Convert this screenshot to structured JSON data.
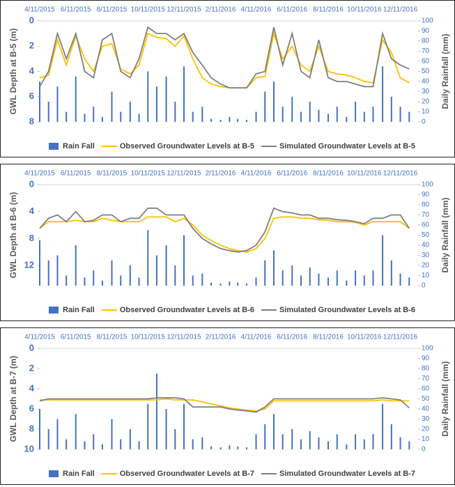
{
  "chart_data": [
    {
      "type": "line",
      "y_axis_label": "GWL Depth at B-5 (m)",
      "y2_axis_label": "Daily Rainfall (mm)",
      "y_inverted": true,
      "x": [
        "4/11/2015",
        "4/26/2015",
        "5/11/2015",
        "5/26/2015",
        "6/11/2015",
        "6/26/2015",
        "7/11/2015",
        "7/26/2015",
        "8/11/2015",
        "8/26/2015",
        "9/11/2015",
        "9/26/2015",
        "10/11/2015",
        "10/26/2015",
        "11/11/2015",
        "11/26/2015",
        "12/11/2015",
        "12/26/2015",
        "1/11/2016",
        "1/26/2016",
        "2/11/2016",
        "2/26/2016",
        "3/11/2016",
        "3/26/2016",
        "4/11/2016",
        "4/26/2016",
        "5/11/2016",
        "5/26/2016",
        "6/11/2016",
        "6/26/2016",
        "7/11/2016",
        "7/26/2016",
        "8/11/2016",
        "8/26/2016",
        "9/11/2016",
        "9/26/2016",
        "10/11/2016",
        "10/26/2016",
        "11/11/2016",
        "11/26/2016",
        "12/11/2016",
        "12/26/2016"
      ],
      "xlim": [
        "4/11/2015",
        "1/10/2017"
      ],
      "xticks": [
        "4/11/2015",
        "6/11/2015",
        "8/11/2015",
        "10/11/2015",
        "12/11/2015",
        "2/11/2016",
        "4/11/2016",
        "6/11/2016",
        "8/11/2016",
        "10/11/2016",
        "12/11/2016"
      ],
      "ylim": [
        0,
        8
      ],
      "yticks": [
        0,
        2,
        4,
        6,
        8
      ],
      "y2lim": [
        0,
        100
      ],
      "y2ticks": [
        0,
        10,
        20,
        30,
        40,
        50,
        60,
        70,
        80,
        90,
        100
      ],
      "series": [
        {
          "name": "Rain Fall",
          "color": "#4472c4",
          "axis": "y2",
          "kind": "bar",
          "values": [
            40,
            20,
            35,
            10,
            45,
            8,
            15,
            5,
            30,
            10,
            20,
            8,
            50,
            35,
            45,
            20,
            55,
            10,
            15,
            3,
            2,
            5,
            3,
            2,
            10,
            30,
            40,
            15,
            25,
            10,
            20,
            12,
            8,
            15,
            5,
            20,
            10,
            15,
            55,
            25,
            15,
            10
          ]
        },
        {
          "name": "Observed Groundwater Levels at B-5",
          "color": "#ffc000",
          "values": [
            4.5,
            4.3,
            1.5,
            3.5,
            1.2,
            3.0,
            4.0,
            2.0,
            1.8,
            3.8,
            4.2,
            3.5,
            1.0,
            1.3,
            1.4,
            2.0,
            1.2,
            3.0,
            4.5,
            5.0,
            5.2,
            5.3,
            5.3,
            5.3,
            4.5,
            4.4,
            1.0,
            3.0,
            2.0,
            3.5,
            4.0,
            2.0,
            4.0,
            4.2,
            4.3,
            4.5,
            4.8,
            4.9,
            1.5,
            2.5,
            4.5,
            4.9
          ]
        },
        {
          "name": "Simulated Groundwater Levels at B-5",
          "color": "#7f7f7f",
          "values": [
            5.2,
            4.0,
            1.0,
            3.0,
            1.0,
            4.0,
            4.5,
            1.5,
            1.0,
            4.0,
            4.5,
            3.0,
            0.5,
            1.0,
            1.0,
            1.5,
            1.0,
            2.5,
            3.5,
            4.5,
            5.0,
            5.3,
            5.3,
            5.3,
            4.2,
            4.0,
            0.5,
            3.5,
            1.0,
            4.0,
            4.5,
            1.5,
            4.5,
            4.8,
            4.8,
            5.0,
            5.2,
            5.2,
            1.0,
            3.0,
            3.5,
            3.8
          ]
        }
      ]
    },
    {
      "type": "line",
      "y_axis_label": "GWL Depth at B-6 (m)",
      "y2_axis_label": "Daily Rainfall (mm)",
      "y_inverted": true,
      "x": [
        "4/11/2015",
        "4/26/2015",
        "5/11/2015",
        "5/26/2015",
        "6/11/2015",
        "6/26/2015",
        "7/11/2015",
        "7/26/2015",
        "8/11/2015",
        "8/26/2015",
        "9/11/2015",
        "9/26/2015",
        "10/11/2015",
        "10/26/2015",
        "11/11/2015",
        "11/26/2015",
        "12/11/2015",
        "12/26/2015",
        "1/11/2016",
        "1/26/2016",
        "2/11/2016",
        "2/26/2016",
        "3/11/2016",
        "3/26/2016",
        "4/11/2016",
        "4/26/2016",
        "5/11/2016",
        "5/26/2016",
        "6/11/2016",
        "6/26/2016",
        "7/11/2016",
        "7/26/2016",
        "8/11/2016",
        "8/26/2016",
        "9/11/2016",
        "9/26/2016",
        "10/11/2016",
        "10/26/2016",
        "11/11/2016",
        "11/26/2016",
        "12/11/2016",
        "12/26/2016"
      ],
      "xlim": [
        "4/11/2015",
        "1/10/2017"
      ],
      "xticks": [
        "4/11/2015",
        "6/11/2015",
        "8/11/2015",
        "10/11/2015",
        "12/11/2015",
        "2/11/2016",
        "4/11/2016",
        "6/11/2016",
        "8/11/2016",
        "10/11/2016",
        "12/11/2016"
      ],
      "ylim": [
        0,
        15
      ],
      "yticks": [
        0,
        4,
        8,
        12
      ],
      "y2lim": [
        0,
        100
      ],
      "y2ticks": [
        0,
        10,
        20,
        30,
        40,
        50,
        60,
        70,
        80,
        90,
        100
      ],
      "series": [
        {
          "name": "Rain Fall",
          "color": "#4472c4",
          "axis": "y2",
          "kind": "bar",
          "values": [
            45,
            25,
            30,
            10,
            40,
            8,
            15,
            5,
            25,
            10,
            20,
            8,
            55,
            30,
            40,
            20,
            50,
            10,
            12,
            3,
            2,
            4,
            3,
            2,
            8,
            25,
            35,
            15,
            20,
            10,
            18,
            12,
            8,
            15,
            5,
            15,
            10,
            15,
            50,
            25,
            12,
            8
          ]
        },
        {
          "name": "Observed Groundwater Levels at B-6",
          "color": "#ffc000",
          "values": [
            6.5,
            5.5,
            5.5,
            5.5,
            5.3,
            5.5,
            5.5,
            5.0,
            5.3,
            5.5,
            5.5,
            5.5,
            4.8,
            4.8,
            4.8,
            5.5,
            5.0,
            6.0,
            7.5,
            8.3,
            9.0,
            9.5,
            9.8,
            10.0,
            9.5,
            8.0,
            5.0,
            4.8,
            4.8,
            5.0,
            5.0,
            5.2,
            5.3,
            5.5,
            5.5,
            5.6,
            6.0,
            5.5,
            5.5,
            5.5,
            5.5,
            6.5
          ]
        },
        {
          "name": "Simulated Groundwater Levels at B-6",
          "color": "#7f7f7f",
          "values": [
            6.5,
            5.0,
            4.5,
            5.5,
            4.0,
            5.5,
            5.3,
            4.5,
            4.5,
            5.5,
            5.0,
            5.0,
            3.5,
            3.5,
            4.5,
            4.5,
            4.5,
            6.5,
            8.0,
            8.8,
            9.5,
            9.8,
            10.0,
            9.8,
            9.0,
            7.0,
            3.5,
            4.0,
            4.2,
            4.5,
            4.5,
            5.0,
            5.0,
            5.2,
            5.3,
            5.5,
            5.8,
            5.0,
            5.0,
            4.5,
            4.5,
            6.5
          ]
        }
      ]
    },
    {
      "type": "line",
      "y_axis_label": "GWL Depth at B-7 (m)",
      "y2_axis_label": "Daily Rainfall (mm)",
      "y_inverted": true,
      "x": [
        "4/11/2015",
        "4/26/2015",
        "5/11/2015",
        "5/26/2015",
        "6/11/2015",
        "6/26/2015",
        "7/11/2015",
        "7/26/2015",
        "8/11/2015",
        "8/26/2015",
        "9/11/2015",
        "9/26/2015",
        "10/11/2015",
        "10/26/2015",
        "11/11/2015",
        "11/26/2015",
        "12/11/2015",
        "12/26/2015",
        "1/11/2016",
        "1/26/2016",
        "2/11/2016",
        "2/26/2016",
        "3/11/2016",
        "3/26/2016",
        "4/11/2016",
        "4/26/2016",
        "5/11/2016",
        "5/26/2016",
        "6/11/2016",
        "6/26/2016",
        "7/11/2016",
        "7/26/2016",
        "8/11/2016",
        "8/26/2016",
        "9/11/2016",
        "9/26/2016",
        "10/11/2016",
        "10/26/2016",
        "11/11/2016",
        "11/26/2016",
        "12/11/2016",
        "12/26/2016"
      ],
      "xlim": [
        "4/11/2015",
        "1/10/2017"
      ],
      "xticks": [
        "4/11/2015",
        "6/11/2015",
        "8/11/2015",
        "10/11/2015",
        "12/11/2015",
        "2/11/2016",
        "4/11/2016",
        "6/11/2016",
        "8/11/2016",
        "10/11/2016",
        "12/11/2016"
      ],
      "ylim": [
        0,
        10
      ],
      "yticks": [
        0,
        2,
        4,
        6,
        8,
        10
      ],
      "y2lim": [
        0,
        100
      ],
      "y2ticks": [
        0,
        10,
        20,
        30,
        40,
        50,
        60,
        70,
        80,
        90,
        100
      ],
      "series": [
        {
          "name": "Rain Fall",
          "color": "#4472c4",
          "axis": "y2",
          "kind": "bar",
          "values": [
            40,
            20,
            30,
            10,
            35,
            8,
            15,
            5,
            30,
            10,
            20,
            8,
            45,
            75,
            40,
            20,
            45,
            10,
            12,
            3,
            2,
            4,
            3,
            2,
            15,
            25,
            35,
            15,
            20,
            10,
            18,
            12,
            8,
            15,
            5,
            15,
            10,
            15,
            45,
            25,
            12,
            8
          ]
        },
        {
          "name": "Observed Groundwater Levels at B-7",
          "color": "#ffc000",
          "values": [
            5.1,
            5.1,
            5.1,
            5.1,
            5.1,
            5.1,
            5.1,
            5.1,
            5.1,
            5.1,
            5.1,
            5.1,
            5.1,
            5.1,
            5.0,
            5.1,
            5.1,
            5.1,
            5.3,
            5.5,
            5.7,
            5.9,
            6.0,
            6.1,
            6.2,
            6.0,
            5.2,
            5.2,
            5.2,
            5.2,
            5.2,
            5.2,
            5.2,
            5.2,
            5.2,
            5.2,
            5.2,
            5.2,
            5.1,
            5.2,
            5.2,
            5.2
          ]
        },
        {
          "name": "Simulated Groundwater Levels at B-7",
          "color": "#7f7f7f",
          "values": [
            5.2,
            5.0,
            5.0,
            5.0,
            5.0,
            5.0,
            5.0,
            5.0,
            5.0,
            5.0,
            5.0,
            5.0,
            5.0,
            4.9,
            4.9,
            4.9,
            5.0,
            5.8,
            5.8,
            5.8,
            5.8,
            6.0,
            6.1,
            6.2,
            6.3,
            5.8,
            5.0,
            5.0,
            5.0,
            5.0,
            5.0,
            5.0,
            5.0,
            5.0,
            5.0,
            5.0,
            5.0,
            5.0,
            4.9,
            5.0,
            5.1,
            5.9
          ]
        }
      ]
    }
  ]
}
